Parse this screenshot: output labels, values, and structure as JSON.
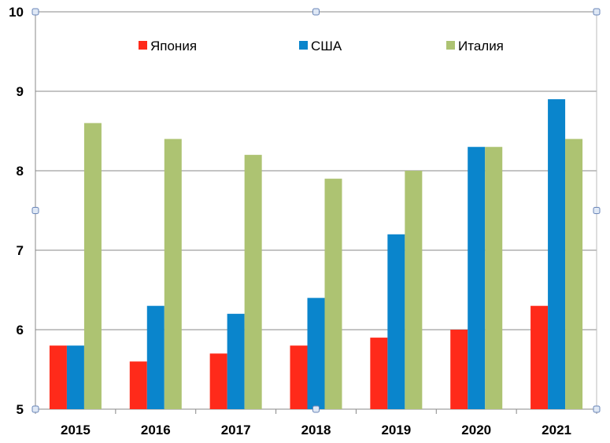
{
  "chart_data": {
    "type": "bar",
    "categories": [
      "2015",
      "2016",
      "2017",
      "2018",
      "2019",
      "2020",
      "2021"
    ],
    "series": [
      {
        "name": "Япония",
        "color": "#ff2a1a",
        "values": [
          5.8,
          5.6,
          5.7,
          5.8,
          5.9,
          6.0,
          6.3
        ]
      },
      {
        "name": "США",
        "color": "#0a85cc",
        "values": [
          5.8,
          6.3,
          6.2,
          6.4,
          7.2,
          8.3,
          8.9
        ]
      },
      {
        "name": "Италия",
        "color": "#adc372",
        "values": [
          8.6,
          8.4,
          8.2,
          7.9,
          8.0,
          8.3,
          8.4
        ]
      }
    ],
    "ylim": [
      5,
      10
    ],
    "yticks": [
      "5",
      "6",
      "7",
      "8",
      "9",
      "10"
    ],
    "grid": true,
    "legend": "top"
  }
}
